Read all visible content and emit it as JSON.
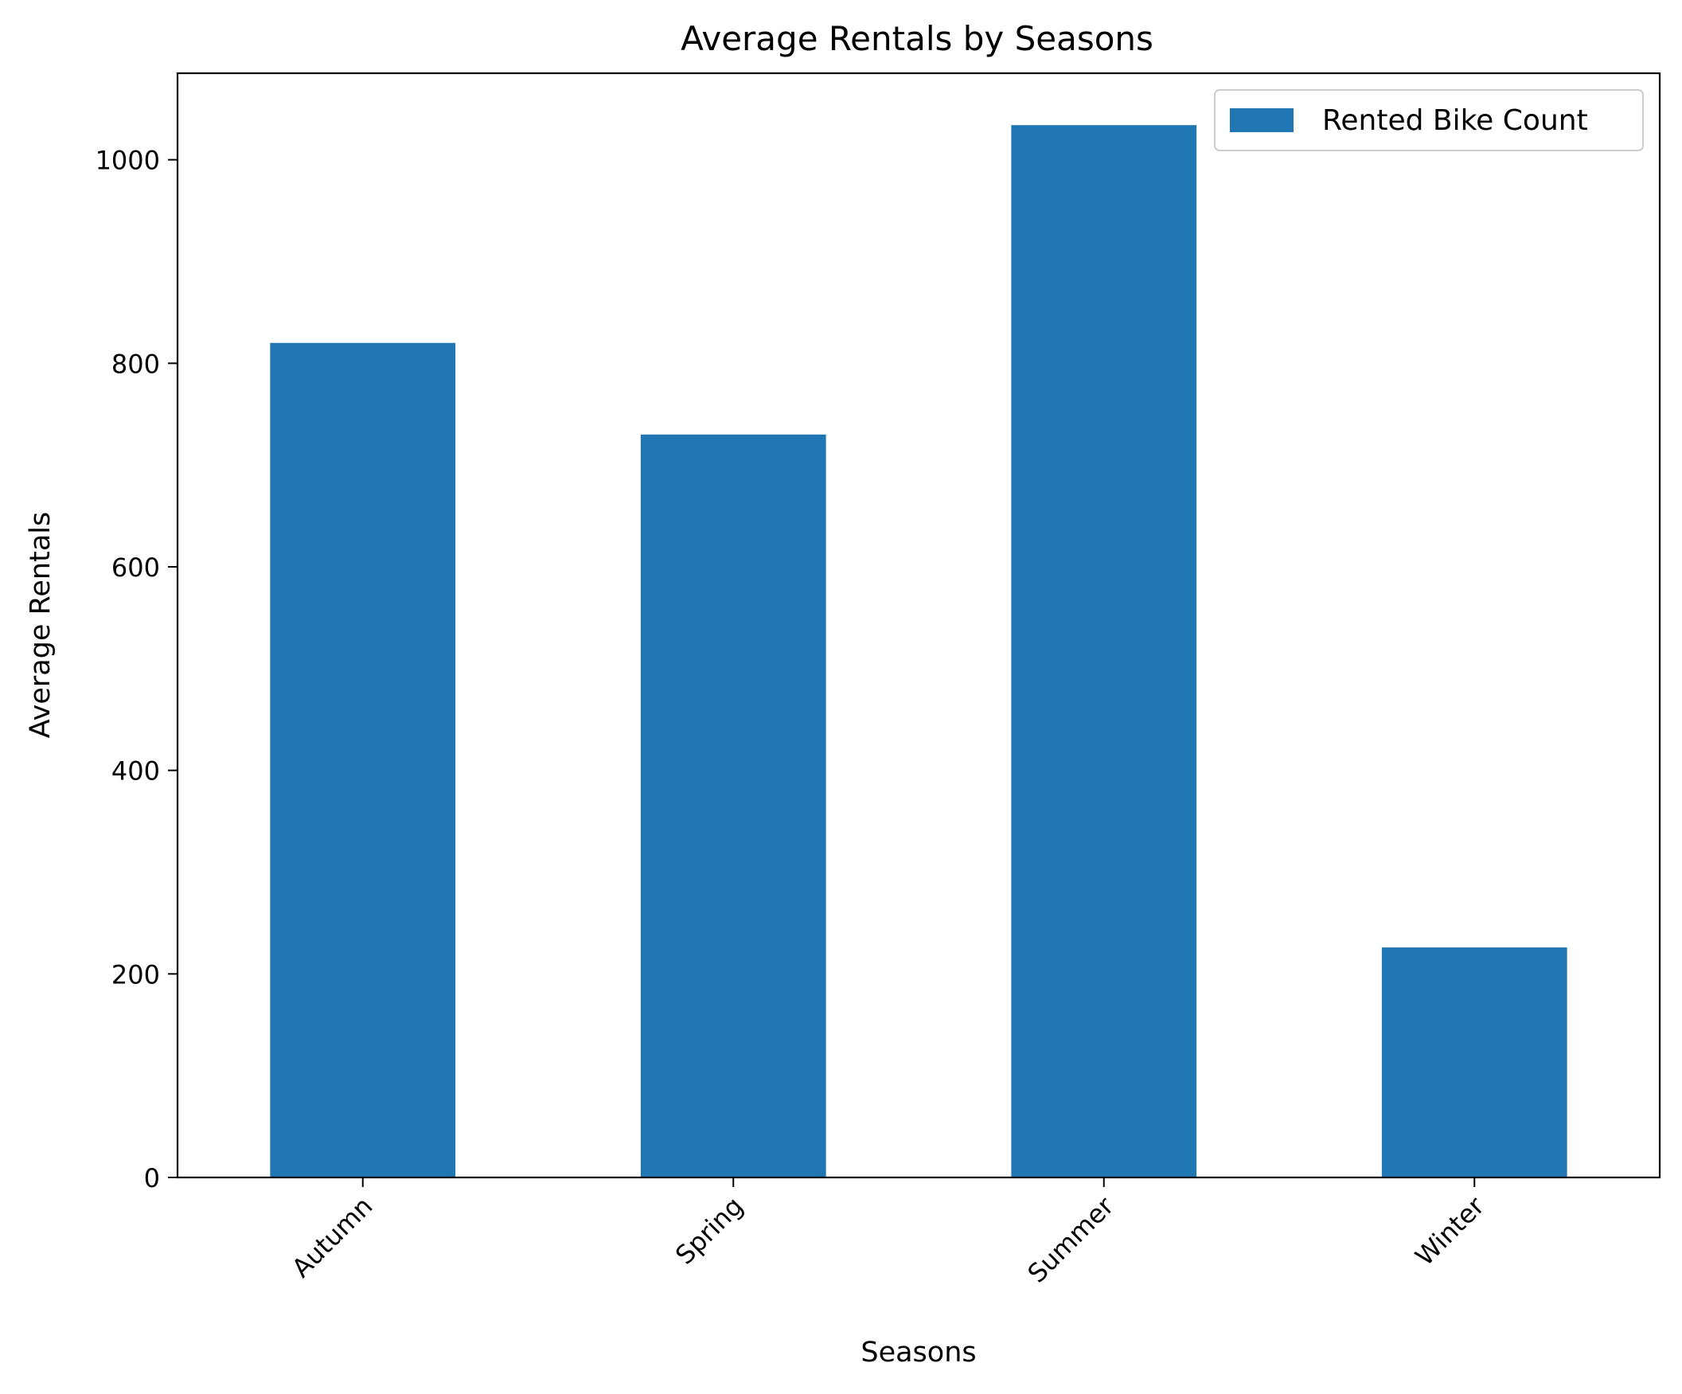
{
  "chart_data": {
    "type": "bar",
    "title": "Average Rentals by Seasons",
    "xlabel": "Seasons",
    "ylabel": "Average Rentals",
    "categories": [
      "Autumn",
      "Spring",
      "Summer",
      "Winter"
    ],
    "series": [
      {
        "name": "Rented Bike Count",
        "values": [
          820,
          730,
          1034,
          226
        ]
      }
    ],
    "ylim": [
      0,
      1085
    ],
    "yticks": [
      0,
      200,
      400,
      600,
      800,
      1000
    ],
    "grid": false,
    "legend_position": "top-right",
    "x_tick_rotation": 45,
    "colors": {
      "bar": "#2077b4"
    }
  }
}
